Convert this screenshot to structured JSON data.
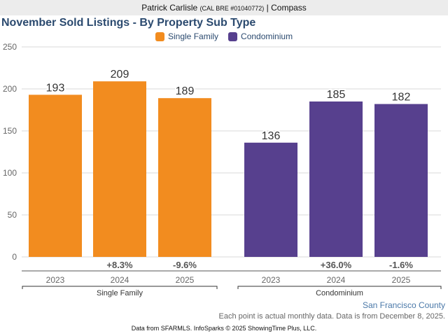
{
  "header": {
    "agent_name": "Patrick Carlisle",
    "license": "(CAL BRE #01040772)",
    "separator": "|",
    "brokerage": "Compass"
  },
  "footer": {
    "region": "San Francisco County",
    "note": "Each point is actual monthly data. Data is from December 8, 2025.",
    "source": "Data from SFARMLS. InfoSparks © 2025 ShowingTime Plus, LLC."
  },
  "chart_data": {
    "type": "bar",
    "title": "November Sold Listings - By Property Sub Type",
    "xlabel": "",
    "ylabel": "",
    "ylim": [
      0,
      250
    ],
    "yticks": [
      0,
      50,
      100,
      150,
      200,
      250
    ],
    "grid": true,
    "legend_position": "top-center",
    "categories": [
      "2023",
      "2024",
      "2025"
    ],
    "series": [
      {
        "name": "Single Family",
        "group_label": "Single Family",
        "color": "#f28c1f",
        "values": [
          193,
          209,
          189
        ],
        "changes": [
          "",
          "+8.3%",
          "-9.6%"
        ]
      },
      {
        "name": "Condominium",
        "group_label": "Condominium",
        "color": "#57408e",
        "values": [
          136,
          185,
          182
        ],
        "changes": [
          "",
          "+36.0%",
          "-1.6%"
        ]
      }
    ]
  }
}
